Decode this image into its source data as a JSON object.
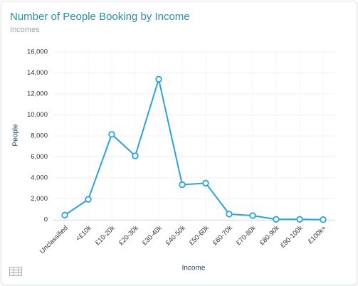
{
  "chart_data": {
    "type": "line",
    "title": "Number of People Booking by Income",
    "subtitle": "Incomes",
    "x_label": "Income",
    "y_label": "People",
    "categories": [
      "Unclassified",
      "<£10k",
      "£10-20k",
      "£20-30k",
      "£30-40k",
      "£40-50k",
      "£50-60k",
      "£60-70k",
      "£70-80k",
      "£80-90k",
      "£90-100k",
      "£100k+"
    ],
    "series": [
      {
        "name": "People",
        "color": "#2aa3dc",
        "values": [
          450,
          1950,
          8150,
          6100,
          13400,
          3350,
          3500,
          550,
          400,
          50,
          50,
          20
        ]
      }
    ],
    "ylim": [
      0,
      16000
    ],
    "yticks": [
      0,
      {
        "value": 2000,
        "label": "2,000"
      },
      {
        "value": 4000,
        "label": "4,000"
      },
      {
        "value": 6000,
        "label": "6,000"
      },
      {
        "value": 8000,
        "label": "8,000"
      },
      {
        "value": 10000,
        "label": "10,000"
      },
      {
        "value": 12000,
        "label": "12,000"
      },
      {
        "value": 14000,
        "label": "14,000"
      },
      {
        "value": 16000,
        "label": "16,000"
      }
    ],
    "grid": true
  }
}
